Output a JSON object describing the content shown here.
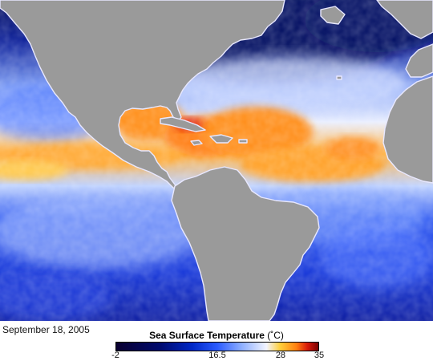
{
  "caption": {
    "date": "September 18, 2005"
  },
  "legend": {
    "title": "Sea Surface Temperature",
    "unit": "(˚C)",
    "min": -2,
    "max": 35,
    "ticks": [
      "-2",
      "16.5",
      "28",
      "35"
    ],
    "tick_values": [
      -2,
      16.5,
      28,
      35
    ],
    "colormap": [
      {
        "value": -2,
        "color": "#0a0030"
      },
      {
        "value": 6,
        "color": "#000a6e"
      },
      {
        "value": 12,
        "color": "#0028c8"
      },
      {
        "value": 16.5,
        "color": "#2b5bff"
      },
      {
        "value": 21,
        "color": "#8fb0ff"
      },
      {
        "value": 25.5,
        "color": "#f2f4ff"
      },
      {
        "value": 28,
        "color": "#ffcf3a"
      },
      {
        "value": 31,
        "color": "#ff7f10"
      },
      {
        "value": 33,
        "color": "#d81a0a"
      },
      {
        "value": 35,
        "color": "#7a0000"
      }
    ]
  },
  "map": {
    "land_color": "#9a9a9a",
    "coast_color": "#e8e8ff",
    "region": "Atlantic Ocean, Gulf of Mexico, Caribbean Sea, Eastern Pacific"
  }
}
